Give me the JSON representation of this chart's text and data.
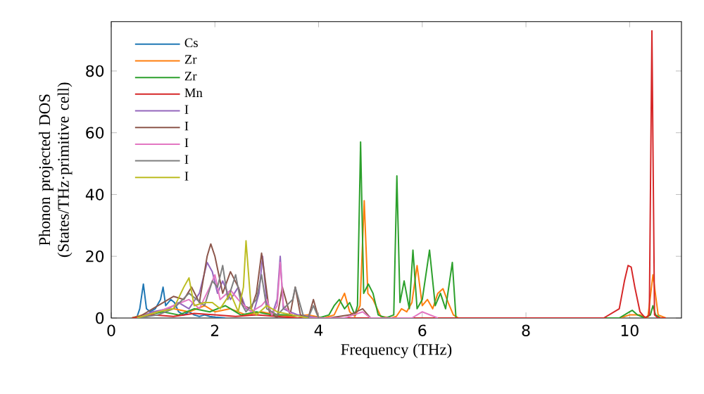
{
  "chart_data": {
    "type": "line",
    "xlabel": "Frequency (THz)",
    "ylabel": "Phonon projected DOS (States/THz·primitive cell)",
    "xlim": [
      0,
      11
    ],
    "ylim": [
      0,
      96
    ],
    "xticks": [
      0,
      2,
      4,
      6,
      8,
      10
    ],
    "yticks": [
      0,
      20,
      40,
      60,
      80
    ],
    "legend": "top left",
    "series": [
      {
        "name": "Cs",
        "color": "#1f77b4",
        "x": [
          0.4,
          0.5,
          0.55,
          0.62,
          0.68,
          0.75,
          0.85,
          0.95,
          1.0,
          1.05,
          1.15,
          1.22,
          1.3,
          1.4,
          1.5,
          1.6,
          1.7,
          1.8,
          1.9,
          2.0,
          2.1,
          2.2
        ],
        "values": [
          0,
          0.5,
          3,
          11,
          3,
          2,
          3,
          6,
          10,
          4,
          6,
          5,
          2,
          1,
          2,
          1,
          0.5,
          1,
          0.5,
          0.3,
          0.2,
          0
        ]
      },
      {
        "name": "Zr",
        "color": "#ff7f0e",
        "x": [
          0.4,
          0.6,
          0.9,
          1.2,
          1.5,
          1.8,
          2.0,
          2.3,
          2.6,
          2.9,
          3.2,
          3.5,
          3.8,
          4.1,
          4.3,
          4.5,
          4.6,
          4.7,
          4.8,
          4.88,
          4.95,
          5.05,
          5.2,
          5.4,
          5.5,
          5.6,
          5.7,
          5.8,
          5.9,
          6.0,
          6.1,
          6.2,
          6.3,
          6.4,
          6.5,
          6.6,
          6.7,
          9.8,
          10.0,
          10.2,
          10.35,
          10.45,
          10.55,
          10.7
        ],
        "values": [
          0,
          1,
          2,
          3,
          2,
          4,
          2,
          3,
          1,
          2,
          1,
          0.5,
          1,
          0,
          1,
          8,
          2,
          0.5,
          4,
          38,
          8,
          6,
          0.5,
          0,
          0.5,
          3,
          2,
          5,
          17,
          4,
          6,
          3,
          8,
          9.5,
          5,
          1,
          0,
          0,
          1,
          1,
          0,
          14,
          1,
          0
        ]
      },
      {
        "name": "Zr",
        "color": "#2ca02c",
        "x": [
          0.4,
          0.7,
          1.0,
          1.3,
          1.6,
          1.9,
          2.2,
          2.5,
          2.8,
          3.1,
          3.4,
          3.7,
          4.0,
          4.2,
          4.3,
          4.4,
          4.5,
          4.6,
          4.7,
          4.75,
          4.81,
          4.87,
          4.96,
          5.05,
          5.15,
          5.3,
          5.45,
          5.51,
          5.57,
          5.65,
          5.75,
          5.82,
          5.9,
          6.0,
          6.14,
          6.25,
          6.35,
          6.45,
          6.58,
          6.65,
          9.8,
          10.0,
          10.05,
          10.15,
          10.3,
          10.4,
          10.45,
          10.5,
          10.6
        ],
        "values": [
          0,
          1,
          2,
          1,
          3,
          2,
          4,
          1,
          2,
          1,
          1,
          0.5,
          0,
          1,
          4,
          6,
          3,
          5,
          1,
          4,
          57,
          8,
          11,
          8,
          1,
          0,
          1,
          46,
          5,
          12,
          3,
          22,
          3,
          6,
          22,
          4,
          8,
          3,
          18,
          0,
          0,
          2,
          2.5,
          1,
          0,
          1,
          4,
          1,
          0
        ]
      },
      {
        "name": "Mn",
        "color": "#d62728",
        "x": [
          0.4,
          0.8,
          1.2,
          1.6,
          2.0,
          2.4,
          2.8,
          3.2,
          3.6,
          9.5,
          9.8,
          9.9,
          9.97,
          10.03,
          10.1,
          10.2,
          10.3,
          10.38,
          10.43,
          10.48,
          10.55,
          10.7
        ],
        "values": [
          0,
          1,
          0.5,
          1.5,
          1,
          0.5,
          1,
          0.5,
          0,
          0,
          3,
          12,
          17,
          16.5,
          10,
          2,
          0,
          1,
          93,
          1,
          0,
          0
        ]
      },
      {
        "name": "I",
        "color": "#9467bd",
        "x": [
          0.5,
          0.8,
          1.1,
          1.3,
          1.5,
          1.7,
          1.85,
          1.95,
          2.05,
          2.15,
          2.3,
          2.45,
          2.6,
          2.75,
          2.85,
          2.92,
          3.0,
          3.1,
          3.2,
          3.26,
          3.32,
          3.45,
          3.6,
          3.8,
          4.0
        ],
        "values": [
          0,
          2,
          3,
          5,
          3,
          8,
          18,
          15,
          8,
          12,
          6,
          10,
          3,
          2,
          8,
          20,
          5,
          1,
          6,
          20,
          3,
          2,
          1,
          0.5,
          0
        ]
      },
      {
        "name": "I",
        "color": "#8c564b",
        "x": [
          0.5,
          0.8,
          1.0,
          1.2,
          1.4,
          1.55,
          1.7,
          1.85,
          1.92,
          2.0,
          2.15,
          2.3,
          2.45,
          2.55,
          2.7,
          2.8,
          2.9,
          2.95,
          3.05,
          3.2,
          3.3,
          3.45,
          3.55,
          3.65,
          3.8,
          3.9,
          4.0,
          4.2,
          4.6,
          4.85,
          5.0
        ],
        "values": [
          0,
          3,
          5,
          7,
          6,
          10,
          5,
          20,
          24,
          20,
          8,
          15,
          10,
          4,
          3,
          8,
          21,
          15,
          2,
          0,
          10,
          1,
          10,
          1,
          0,
          6,
          0,
          0,
          1,
          3,
          0
        ]
      },
      {
        "name": "I",
        "color": "#e377c2",
        "x": [
          0.5,
          0.9,
          1.2,
          1.5,
          1.7,
          1.9,
          2.0,
          2.1,
          2.3,
          2.5,
          2.7,
          2.9,
          3.0,
          3.1,
          3.2,
          3.26,
          3.32,
          3.5,
          3.8,
          4.5,
          4.85,
          5.0,
          5.8,
          6.0,
          6.3
        ],
        "values": [
          0,
          2,
          4,
          6,
          3,
          10,
          14,
          6,
          9,
          5,
          2,
          4,
          6,
          1,
          4,
          18,
          4,
          1,
          0,
          0,
          2,
          0,
          0,
          2,
          0
        ]
      },
      {
        "name": "I",
        "color": "#7f7f7f",
        "x": [
          0.5,
          0.9,
          1.2,
          1.5,
          1.8,
          1.95,
          2.05,
          2.15,
          2.25,
          2.4,
          2.5,
          2.6,
          2.8,
          2.9,
          3.0,
          3.2,
          3.5,
          3.55,
          3.7,
          3.8,
          3.9,
          4.0
        ],
        "values": [
          0,
          1,
          3,
          8,
          4,
          12,
          10,
          17,
          6,
          14,
          5,
          2,
          6,
          14,
          3,
          1,
          6,
          10,
          1,
          0,
          4,
          0
        ]
      },
      {
        "name": "I",
        "color": "#bcbd22",
        "x": [
          0.5,
          0.9,
          1.2,
          1.4,
          1.5,
          1.6,
          1.8,
          1.95,
          2.1,
          2.3,
          2.45,
          2.55,
          2.6,
          2.7,
          2.8,
          3.0,
          3.2,
          3.5,
          3.8
        ],
        "values": [
          0,
          2,
          3,
          10,
          13,
          4,
          5,
          5,
          3,
          8,
          2,
          10,
          25,
          3,
          1,
          4,
          2,
          1,
          0
        ]
      }
    ]
  }
}
